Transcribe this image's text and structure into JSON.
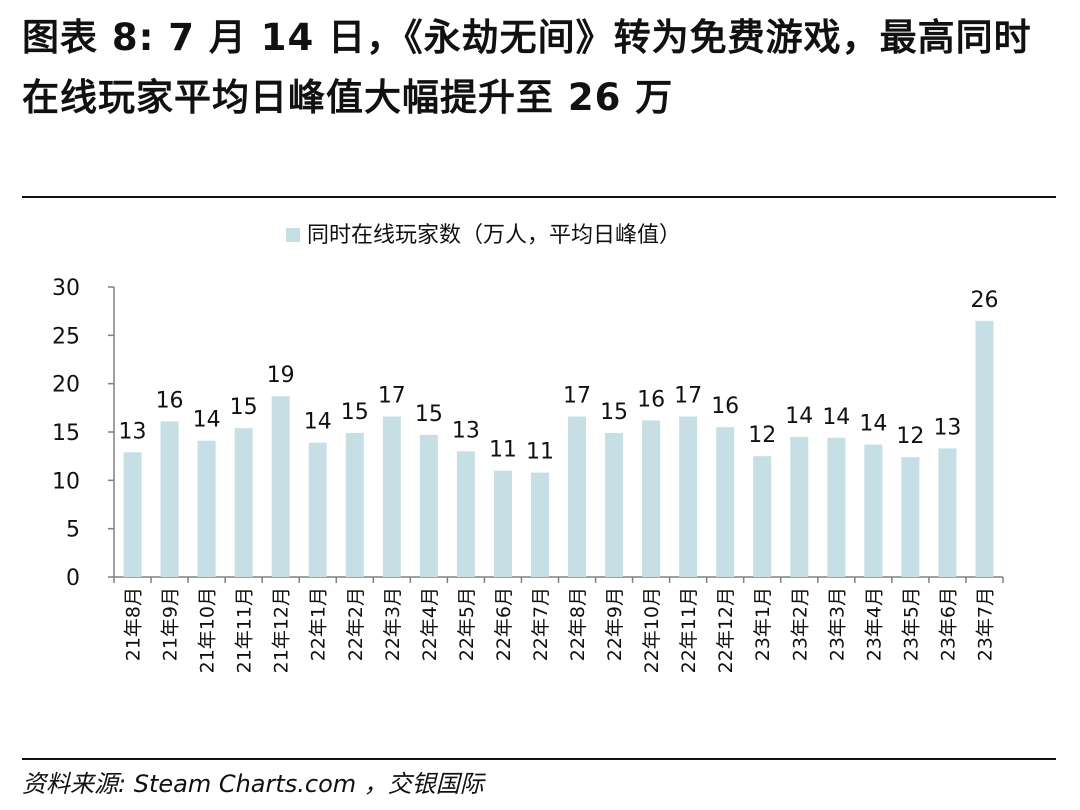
{
  "title": "图表 8: 7 月 14 日，《永劫无间》转为免费游戏，最高同时在线玩家平均日峰值大幅提升至 26 万",
  "source": "资料来源: Steam Charts.com ，交银国际",
  "chart_data": {
    "type": "bar",
    "title": "",
    "xlabel": "",
    "ylabel": "",
    "categories": [
      "21年8月",
      "21年9月",
      "21年10月",
      "21年11月",
      "21年12月",
      "22年1月",
      "22年2月",
      "22年3月",
      "22年4月",
      "22年5月",
      "22年6月",
      "22年7月",
      "22年8月",
      "22年9月",
      "22年10月",
      "22年11月",
      "22年12月",
      "23年1月",
      "23年2月",
      "23年3月",
      "23年4月",
      "23年5月",
      "23年6月",
      "23年7月"
    ],
    "series": [
      {
        "name": "同时在线玩家数（万人，平均日峰值）",
        "values": [
          12.9,
          16.1,
          14.1,
          15.4,
          18.7,
          13.9,
          14.9,
          16.6,
          14.7,
          13.0,
          11.0,
          10.8,
          16.6,
          14.9,
          16.2,
          16.6,
          15.5,
          12.5,
          14.5,
          14.4,
          13.7,
          12.4,
          13.3,
          26.5
        ],
        "labels": [
          "13",
          "16",
          "14",
          "15",
          "19",
          "14",
          "15",
          "17",
          "15",
          "13",
          "11",
          "11",
          "17",
          "15",
          "16",
          "17",
          "16",
          "12",
          "14",
          "14",
          "14",
          "12",
          "13",
          "26"
        ]
      }
    ],
    "ylim": [
      0,
      30
    ],
    "yticks": [
      0,
      5,
      10,
      15,
      20,
      25,
      30
    ],
    "legend": "top-center",
    "grid": false,
    "colors": {
      "bar": "#c6dfe4",
      "axis": "#808080",
      "text": "#111111"
    }
  }
}
